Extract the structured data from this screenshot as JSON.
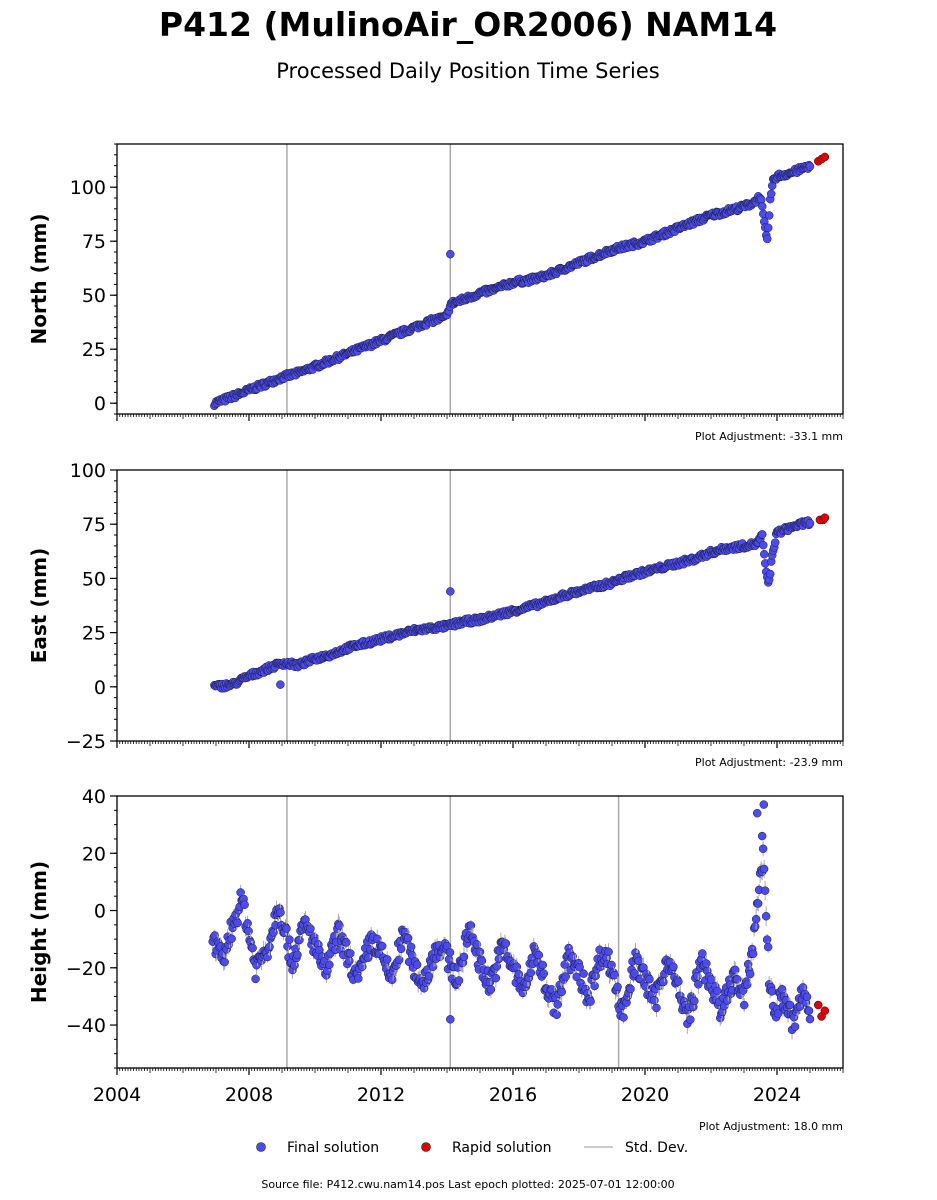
{
  "figure": {
    "title": "P412 (MulinoAir_OR2006) NAM14",
    "subtitle": "Processed Daily Position Time Series",
    "source_note": "Source file: P412.cwu.nam14.pos  Last epoch plotted: 2025-07-01 12:00:00"
  },
  "legend": {
    "final": "Final solution",
    "rapid": "Rapid solution",
    "stddev": "Std. Dev."
  },
  "colors": {
    "final": "#4b4bf0",
    "rapid": "#dd0000",
    "stddev": "#aaaaaa"
  },
  "chart_data": [
    {
      "type": "scatter",
      "ylabel": "North (mm)",
      "adjustment": "Plot Adjustment: -33.1 mm",
      "xlim": [
        2004,
        2026
      ],
      "ylim": [
        -5,
        120
      ],
      "yticks": [
        0,
        25,
        50,
        75,
        100
      ],
      "xtick_labels": [],
      "gaps_vlines": [
        2009.15,
        2014.1
      ],
      "outliers": [
        [
          2014.1,
          69
        ]
      ],
      "series": [
        {
          "name": "Final solution",
          "points": [
            [
              2006.95,
              0
            ],
            [
              2007.5,
              3
            ],
            [
              2008.0,
              6
            ],
            [
              2008.5,
              9
            ],
            [
              2009.0,
              12
            ],
            [
              2009.5,
              14
            ],
            [
              2010.0,
              17
            ],
            [
              2010.5,
              20
            ],
            [
              2011.0,
              23
            ],
            [
              2011.5,
              26
            ],
            [
              2012.0,
              29
            ],
            [
              2012.5,
              32
            ],
            [
              2013.0,
              35
            ],
            [
              2013.5,
              38
            ],
            [
              2014.0,
              40
            ],
            [
              2014.1,
              46
            ],
            [
              2014.5,
              48
            ],
            [
              2015.0,
              51
            ],
            [
              2015.5,
              53
            ],
            [
              2016.0,
              56
            ],
            [
              2016.5,
              57
            ],
            [
              2017.0,
              59
            ],
            [
              2017.5,
              62
            ],
            [
              2018.0,
              65
            ],
            [
              2018.5,
              68
            ],
            [
              2019.0,
              71
            ],
            [
              2019.5,
              73
            ],
            [
              2020.0,
              75
            ],
            [
              2020.5,
              78
            ],
            [
              2021.0,
              81
            ],
            [
              2021.5,
              84
            ],
            [
              2022.0,
              87
            ],
            [
              2022.5,
              89
            ],
            [
              2023.0,
              91
            ],
            [
              2023.3,
              93
            ],
            [
              2023.5,
              96
            ],
            [
              2023.6,
              85
            ],
            [
              2023.7,
              74
            ],
            [
              2023.8,
              95
            ],
            [
              2023.9,
              104
            ],
            [
              2024.0,
              105
            ],
            [
              2024.5,
              107
            ],
            [
              2025.0,
              110
            ]
          ]
        },
        {
          "name": "Rapid solution",
          "points": [
            [
              2025.25,
              112
            ],
            [
              2025.35,
              113
            ],
            [
              2025.45,
              114
            ]
          ]
        }
      ]
    },
    {
      "type": "scatter",
      "ylabel": "East (mm)",
      "adjustment": "Plot Adjustment: -23.9 mm",
      "xlim": [
        2004,
        2026
      ],
      "ylim": [
        -25,
        100
      ],
      "yticks": [
        -25,
        0,
        25,
        50,
        75,
        100
      ],
      "xtick_labels": [],
      "gaps_vlines": [
        2009.15,
        2014.1
      ],
      "outliers": [
        [
          2014.1,
          44
        ],
        [
          2008.95,
          1
        ]
      ],
      "series": [
        {
          "name": "Final solution",
          "points": [
            [
              2006.95,
              0
            ],
            [
              2007.5,
              1
            ],
            [
              2008.0,
              5
            ],
            [
              2008.5,
              8
            ],
            [
              2009.0,
              11
            ],
            [
              2009.5,
              10
            ],
            [
              2010.0,
              13
            ],
            [
              2010.5,
              15
            ],
            [
              2011.0,
              18
            ],
            [
              2011.5,
              20
            ],
            [
              2012.0,
              22
            ],
            [
              2012.5,
              24
            ],
            [
              2013.0,
              26
            ],
            [
              2013.5,
              27
            ],
            [
              2014.0,
              28
            ],
            [
              2014.5,
              30
            ],
            [
              2015.0,
              31
            ],
            [
              2015.5,
              33
            ],
            [
              2016.0,
              35
            ],
            [
              2016.5,
              37
            ],
            [
              2017.0,
              39
            ],
            [
              2017.5,
              42
            ],
            [
              2018.0,
              44
            ],
            [
              2018.5,
              46
            ],
            [
              2019.0,
              48
            ],
            [
              2019.5,
              51
            ],
            [
              2020.0,
              53
            ],
            [
              2020.5,
              55
            ],
            [
              2021.0,
              57
            ],
            [
              2021.5,
              59
            ],
            [
              2022.0,
              62
            ],
            [
              2022.5,
              64
            ],
            [
              2023.0,
              65
            ],
            [
              2023.4,
              66
            ],
            [
              2023.55,
              70
            ],
            [
              2023.65,
              55
            ],
            [
              2023.75,
              47
            ],
            [
              2023.85,
              60
            ],
            [
              2023.95,
              68
            ],
            [
              2024.0,
              71
            ],
            [
              2024.5,
              74
            ],
            [
              2025.0,
              76
            ]
          ]
        },
        {
          "name": "Rapid solution",
          "points": [
            [
              2025.3,
              77
            ],
            [
              2025.4,
              77
            ],
            [
              2025.45,
              78
            ]
          ]
        }
      ]
    },
    {
      "type": "scatter",
      "ylabel": "Height (mm)",
      "adjustment": "Plot Adjustment: 18.0 mm",
      "xlim": [
        2004,
        2026
      ],
      "ylim": [
        -55,
        40
      ],
      "yticks": [
        -40,
        -20,
        0,
        20,
        40
      ],
      "xtick_labels": [
        "2004",
        "2008",
        "2012",
        "2016",
        "2020",
        "2024"
      ],
      "gaps_vlines": [
        2009.15,
        2014.1,
        2019.2
      ],
      "outliers": [
        [
          2014.1,
          -38
        ],
        [
          2023.4,
          34
        ],
        [
          2023.6,
          37
        ],
        [
          2023.55,
          26
        ]
      ],
      "series": [
        {
          "name": "Final solution",
          "points": [
            [
              2006.9,
              -10
            ],
            [
              2007.2,
              -18
            ],
            [
              2007.5,
              -5
            ],
            [
              2007.8,
              4
            ],
            [
              2008.2,
              -20
            ],
            [
              2008.6,
              -12
            ],
            [
              2008.9,
              3
            ],
            [
              2009.3,
              -18
            ],
            [
              2009.7,
              -5
            ],
            [
              2010.0,
              -12
            ],
            [
              2010.3,
              -22
            ],
            [
              2010.7,
              -8
            ],
            [
              2011.0,
              -16
            ],
            [
              2011.3,
              -25
            ],
            [
              2011.7,
              -10
            ],
            [
              2012.0,
              -15
            ],
            [
              2012.3,
              -24
            ],
            [
              2012.7,
              -8
            ],
            [
              2013.0,
              -20
            ],
            [
              2013.3,
              -25
            ],
            [
              2013.7,
              -12
            ],
            [
              2014.0,
              -16
            ],
            [
              2014.3,
              -24
            ],
            [
              2014.7,
              -6
            ],
            [
              2015.0,
              -18
            ],
            [
              2015.3,
              -26
            ],
            [
              2015.7,
              -12
            ],
            [
              2016.0,
              -20
            ],
            [
              2016.3,
              -28
            ],
            [
              2016.7,
              -14
            ],
            [
              2017.0,
              -26
            ],
            [
              2017.3,
              -34
            ],
            [
              2017.7,
              -16
            ],
            [
              2018.0,
              -22
            ],
            [
              2018.3,
              -30
            ],
            [
              2018.7,
              -14
            ],
            [
              2019.0,
              -20
            ],
            [
              2019.3,
              -36
            ],
            [
              2019.7,
              -18
            ],
            [
              2020.0,
              -24
            ],
            [
              2020.3,
              -32
            ],
            [
              2020.7,
              -16
            ],
            [
              2021.0,
              -28
            ],
            [
              2021.3,
              -38
            ],
            [
              2021.7,
              -18
            ],
            [
              2022.0,
              -25
            ],
            [
              2022.3,
              -36
            ],
            [
              2022.7,
              -22
            ],
            [
              2023.0,
              -32
            ],
            [
              2023.3,
              -10
            ],
            [
              2023.45,
              8
            ],
            [
              2023.6,
              20
            ],
            [
              2023.75,
              -22
            ],
            [
              2023.9,
              -35
            ],
            [
              2024.2,
              -30
            ],
            [
              2024.5,
              -40
            ],
            [
              2024.8,
              -28
            ],
            [
              2025.0,
              -36
            ]
          ]
        },
        {
          "name": "Rapid solution",
          "points": [
            [
              2025.25,
              -33
            ],
            [
              2025.35,
              -37
            ],
            [
              2025.45,
              -35
            ]
          ]
        }
      ]
    }
  ]
}
